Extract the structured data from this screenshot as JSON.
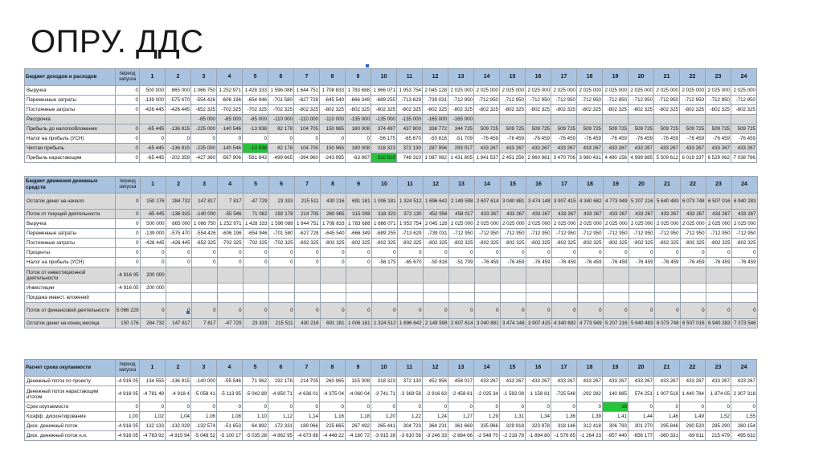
{
  "slide": {
    "title": "ОПРУ. ДДС"
  },
  "t1": {
    "header_label": "Бюджет доходов и расходов",
    "period_label": "период запуска",
    "cols": [
      "1",
      "2",
      "3",
      "4",
      "5",
      "6",
      "7",
      "8",
      "9",
      "10",
      "11",
      "12",
      "13",
      "14",
      "15",
      "16",
      "17",
      "18",
      "19",
      "20",
      "21",
      "22",
      "23",
      "24"
    ],
    "rows": [
      {
        "label": "Выручка",
        "period": "0",
        "vals": [
          "500 000",
          "865 000",
          "1 066 750",
          "1 252 971",
          "1 428 333",
          "1 596 088",
          "1 644 751",
          "1 708 833",
          "1 783 688",
          "1 866 071",
          "1 953 754",
          "2 045 128",
          "2 025 000",
          "2 025 000",
          "2 025 000",
          "2 025 000",
          "2 025 000",
          "2 025 000",
          "2 025 000",
          "2 025 000",
          "2 025 000",
          "2 025 000",
          "2 025 000",
          "2 025 000"
        ]
      },
      {
        "label": "Переменные затраты",
        "period": "0",
        "vals": [
          "-139 000",
          "-575 470",
          "-554 426",
          "-606 196",
          "-654 946",
          "-701 580",
          "-627 728",
          "-645 540",
          "-666 349",
          "-689 255",
          "-713 629",
          "-739 031",
          "-712 950",
          "-712 950",
          "-712 950",
          "-712 950",
          "-712 950",
          "-712 950",
          "-712 950",
          "-712 950",
          "-712 950",
          "-712 950",
          "-712 950",
          "-712 950"
        ]
      },
      {
        "label": "Постоянные затраты",
        "period": "0",
        "vals": [
          "-426 445",
          "-426 445",
          "-652 325",
          "-702 325",
          "-702 325",
          "-702 325",
          "-802 325",
          "-802 325",
          "-802 325",
          "-802 325",
          "-802 325",
          "-802 325",
          "-802 325",
          "-802 325",
          "-802 325",
          "-802 325",
          "-802 325",
          "-802 325",
          "-802 325",
          "-802 325",
          "-802 325",
          "-802 325",
          "-802 325",
          "-802 325"
        ]
      },
      {
        "label": "Рассрочка",
        "period": "",
        "vals": [
          "",
          "",
          "-85 000",
          "-85 000",
          "-85 000",
          "-110 000",
          "-110 000",
          "-110 000",
          "-135 000",
          "-135 000",
          "-135 000",
          "-165 000",
          "-165 000",
          "",
          "",
          "",
          "",
          "",
          "",
          "",
          "",
          "",
          "",
          ""
        ],
        "gray": true
      },
      {
        "label": "Прибыль до налогообложения",
        "period": "0",
        "vals": [
          "-65 445",
          "-136 915",
          "-225 000",
          "-140 546",
          "-13 938",
          "82 178",
          "104 705",
          "150 965",
          "180 008",
          "374 497",
          "437 800",
          "338 772",
          "344 725",
          "509 725",
          "509 725",
          "509 725",
          "509 725",
          "509 725",
          "509 725",
          "509 725",
          "509 725",
          "509 725",
          "509 725",
          "509 725"
        ],
        "gray": true
      },
      {
        "label": "Налог на прибыль (УСН)",
        "period": "0",
        "vals": [
          "0",
          "0",
          "0",
          "0",
          "0",
          "0",
          "0",
          "0",
          "0",
          "-56 175",
          "-65 670",
          "-50 816",
          "-51 709",
          "-76 459",
          "-76 459",
          "-76 459",
          "-76 459",
          "-76 459",
          "-76 459",
          "-76 459",
          "-76 459",
          "-76 459",
          "-76 459",
          "-76 459"
        ]
      },
      {
        "label": "Чистая прибыль",
        "period": "0",
        "vals": [
          "-65 445",
          "-136 915",
          "-225 000",
          "-140 546",
          "-13 938",
          "82 178",
          "104 705",
          "150 965",
          "180 008",
          "318 323",
          "372 130",
          "287 956",
          "293 017",
          "433 267",
          "433 267",
          "433 267",
          "433 267",
          "433 267",
          "433 267",
          "433 267",
          "433 267",
          "433 267",
          "433 267",
          "433 267"
        ],
        "gray": true,
        "green": [
          4
        ]
      },
      {
        "label": "Прибыль нарастающим",
        "period": "0",
        "vals": [
          "-65 445",
          "-202 359",
          "-427 360",
          "-567 906",
          "-581 843",
          "-499 665",
          "-394 960",
          "-243 995",
          "-63 987",
          "310 510",
          "748 310",
          "1 087 082",
          "1 431 805",
          "1 941 537",
          "2 451 256",
          "2 960 981",
          "3 470 706",
          "3 980 431",
          "4 490 156",
          "4 999 885",
          "5 509 612",
          "6 019 337",
          "6 529 062",
          "7 038 786"
        ],
        "green": [
          9
        ]
      }
    ]
  },
  "t2": {
    "header_label": "Бюджет движения денежных средств",
    "period_label": "период запуска",
    "cols": [
      "1",
      "2",
      "3",
      "4",
      "5",
      "6",
      "7",
      "8",
      "9",
      "10",
      "11",
      "12",
      "13",
      "14",
      "15",
      "16",
      "17",
      "18",
      "19",
      "20",
      "21",
      "22",
      "23",
      "24"
    ],
    "rows": [
      {
        "label": "Остаток денег на начало",
        "period": "0",
        "vals": [
          "150 176",
          "284 732",
          "147 817",
          "7 817",
          "-47 729",
          "23 333",
          "215 511",
          "430 216",
          "691 181",
          "1 006 181",
          "1 324 512",
          "1 696 642",
          "2 149 598",
          "2 607 614",
          "3 040 881",
          "3 474 148",
          "3 907 415",
          "4 340 682",
          "4 773 949",
          "5 207 216",
          "5 640 483",
          "6 073 748",
          "6 507 016",
          "6 940 283"
        ],
        "gray": true,
        "tall": true
      },
      {
        "label": "Поток от текущей деятельности",
        "period": "0",
        "vals": [
          "-65 445",
          "-136 915",
          "-140 000",
          "-55 546",
          "71 062",
          "192 178",
          "214 705",
          "260 965",
          "315 008",
          "318 323",
          "372 130",
          "452 956",
          "458 017",
          "433 267",
          "433 267",
          "433 267",
          "433 267",
          "433 267",
          "433 267",
          "433 267",
          "433 267",
          "433 267",
          "433 267",
          "433 267"
        ],
        "gray": true
      },
      {
        "label": "Выручка",
        "period": "0",
        "vals": [
          "500 000",
          "865 000",
          "1 066 750",
          "1 252 971",
          "1 428 333",
          "1 596 088",
          "1 644 751",
          "1 708 833",
          "1 783 688",
          "1 866 071",
          "1 953 754",
          "2 045 128",
          "2 025 000",
          "2 025 000",
          "2 025 000",
          "2 025 000",
          "2 025 000",
          "2 025 000",
          "2 025 000",
          "2 025 000",
          "2 025 000",
          "2 025 000",
          "2 025 000",
          "2 025 000"
        ]
      },
      {
        "label": "Переменные затраты",
        "period": "0",
        "vals": [
          "-139 000",
          "-575 470",
          "-554 426",
          "-606 196",
          "-654 946",
          "-701 580",
          "-627 728",
          "-645 540",
          "-666 349",
          "-689 255",
          "-713 629",
          "-739 031",
          "-712 950",
          "-712 950",
          "-712 950",
          "-712 950",
          "-712 950",
          "-712 950",
          "-712 950",
          "-712 950",
          "-712 950",
          "-712 950",
          "-712 950",
          "-712 950"
        ]
      },
      {
        "label": "Постоянные затраты",
        "period": "0",
        "vals": [
          "-426 445",
          "-426 445",
          "-652 325",
          "-702 325",
          "-702 325",
          "-702 325",
          "-802 325",
          "-802 325",
          "-802 325",
          "-802 325",
          "-802 325",
          "-802 325",
          "-802 325",
          "-802 325",
          "-802 325",
          "-802 325",
          "-802 325",
          "-802 325",
          "-802 325",
          "-802 325",
          "-802 325",
          "-802 325",
          "-802 325",
          "-802 325"
        ]
      },
      {
        "label": "Проценты",
        "period": "0",
        "vals": [
          "0",
          "0",
          "0",
          "0",
          "0",
          "0",
          "0",
          "0",
          "0",
          "0",
          "0",
          "0",
          "0",
          "0",
          "0",
          "0",
          "0",
          "0",
          "0",
          "0",
          "0",
          "0",
          "0",
          "0"
        ]
      },
      {
        "label": "Налог на прибыль (УСН)",
        "period": "0",
        "vals": [
          "0",
          "0",
          "0",
          "0",
          "0",
          "0",
          "0",
          "0",
          "0",
          "-56 175",
          "-65 670",
          "-50 816",
          "-51 709",
          "-76 459",
          "-76 459",
          "-76 459",
          "-76 459",
          "-76 459",
          "-76 459",
          "-76 459",
          "-76 459",
          "-76 459",
          "-76 459",
          "-76 459"
        ]
      },
      {
        "label": "Поток от инвестиционной деятельности",
        "period": "-4 916 05",
        "vals": [
          "200 000",
          "",
          "",
          "",
          "",
          "",
          "",
          "",
          "",
          "",
          "",
          "",
          "",
          "",
          "",
          "",
          "",
          "",
          "",
          "",
          "",
          "",
          "",
          ""
        ],
        "gray": true,
        "tall": true
      },
      {
        "label": "Инвестиции",
        "period": "-4 916 05",
        "vals": [
          "200 000",
          "",
          "",
          "",
          "",
          "",
          "",
          "",
          "",
          "",
          "",
          "",
          "",
          "",
          "",
          "",
          "",
          "",
          "",
          "",
          "",
          "",
          "",
          ""
        ]
      },
      {
        "label": "Продажа инвест. вложений",
        "period": "",
        "vals": [
          "",
          "",
          "",
          "",
          "",
          "",
          "",
          "",
          "",
          "",
          "",
          "",
          "",
          "",
          "",
          "",
          "",
          "",
          "",
          "",
          "",
          "",
          "",
          ""
        ]
      },
      {
        "label": "Поток от финансовой деятельности",
        "period": "5 066 229",
        "vals": [
          "0",
          "0",
          "0",
          "0",
          "0",
          "0",
          "0",
          "0",
          "0",
          "0",
          "0",
          "0",
          "0",
          "0",
          "0",
          "0",
          "0",
          "0",
          "0",
          "0",
          "0",
          "0",
          "0",
          "0"
        ],
        "gray": true,
        "tall": true
      },
      {
        "label": "Остаток денег на конец месяца",
        "period": "150 176",
        "vals": [
          "284 732",
          "147 817",
          "7 817",
          "-47 729",
          "23 333",
          "215 511",
          "430 216",
          "691 181",
          "1 006 181",
          "1 324 512",
          "1 696 642",
          "2 149 598",
          "2 607 614",
          "3 040 881",
          "3 474 148",
          "3 907 415",
          "4 340 682",
          "4 773 949",
          "5 207 216",
          "5 640 483",
          "6 073 748",
          "6 507 016",
          "6 940 283",
          "7 373 546"
        ],
        "gray": true
      }
    ]
  },
  "t3": {
    "header_label": "Расчет срока окупаемости",
    "period_label": "период запуска",
    "cols": [
      "1",
      "2",
      "3",
      "4",
      "5",
      "6",
      "7",
      "8",
      "9",
      "10",
      "11",
      "12",
      "13",
      "14",
      "15",
      "16",
      "17",
      "18",
      "19",
      "20",
      "21",
      "22",
      "23",
      "24"
    ],
    "rows": [
      {
        "label": "Денежный поток по проекту",
        "period": "-4 916 05",
        "vals": [
          "134 555",
          "-136 915",
          "-140 000",
          "-55 546",
          "71 062",
          "192 178",
          "214 705",
          "260 965",
          "315 008",
          "318 323",
          "372 130",
          "452 956",
          "458 017",
          "433 267",
          "433 267",
          "433 267",
          "433 267",
          "433 267",
          "433 267",
          "433 267",
          "433 267",
          "433 267",
          "433 267",
          "433 267"
        ]
      },
      {
        "label": "Денежный поток нарастающим итогом",
        "period": "-4 916 05",
        "vals": [
          "-4 781 49",
          "-4 918 4",
          "-5 058 41",
          "-5 113 95",
          "-5 042 89",
          "-4 850 71",
          "-4 636 01",
          "-4 375 04",
          "-4 060 04",
          "-3 741 71",
          "-3 369 58",
          "-2 916 63",
          "-2 458 61",
          "-2 025 34",
          "-1 592 08",
          "-1 158 81",
          "-725 548",
          "-292 282",
          "140 985",
          "574 251",
          "1 007 518",
          "1 440 784",
          "1 874 05",
          "2 307 318"
        ],
        "tall": true
      },
      {
        "label": "Срок окупаемости",
        "period": "0",
        "vals": [
          "0",
          "0",
          "0",
          "0",
          "0",
          "0",
          "0",
          "0",
          "0",
          "0",
          "0",
          "0",
          "0",
          "0",
          "0",
          "0",
          "0",
          "0",
          "19",
          "0",
          "0",
          "0",
          "0",
          "0"
        ],
        "green": [
          18
        ]
      },
      {
        "label": "Коэфф. дисконтирования",
        "period": "1,00",
        "vals": [
          "1,02",
          "1,04",
          "1,06",
          "1,08",
          "1,10",
          "1,12",
          "1,14",
          "1,16",
          "1,18",
          "1,20",
          "1,22",
          "1,24",
          "1,27",
          "1,29",
          "1,31",
          "1,34",
          "1,36",
          "1,39",
          "1,41",
          "1,44",
          "1,46",
          "1,49",
          "1,52",
          "1,55"
        ]
      },
      {
        "label": "Диск. денежный поток",
        "period": "-4 916 05",
        "vals": [
          "132 133",
          "-132 029",
          "-132 574",
          "-51 653",
          "64 892",
          "172 331",
          "189 066",
          "225 665",
          "267 492",
          "265 441",
          "304 723",
          "364 231",
          "361 669",
          "335 966",
          "329 918",
          "323 978",
          "318 146",
          "312 418",
          "306 793",
          "301 270",
          "295 846",
          "290 520",
          "285 290",
          "280 154"
        ]
      },
      {
        "label": "Диск. денежный поток н.и.",
        "period": "-4 916 05",
        "vals": [
          "-4 783 92",
          "-4 915 94",
          "-5 048 52",
          "-5 100 17",
          "-5 035 28",
          "-4 862 95",
          "-4 673 88",
          "-4 448 22",
          "-4 180 72",
          "-3 915 28",
          "-3 610 56",
          "-3 246 33",
          "-2 884 66",
          "-2 548 70",
          "-2 218 78",
          "-1 894 80",
          "-1 576 65",
          "-1 264 23",
          "-957 440",
          "-656 177",
          "-360 331",
          "-69 811",
          "215 479",
          "495 632"
        ]
      }
    ]
  }
}
